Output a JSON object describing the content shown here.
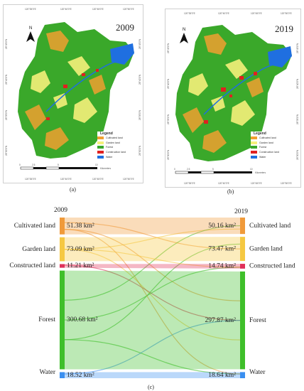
{
  "panels": [
    {
      "id": "a",
      "year": "2009",
      "caption": "(a)",
      "coords_top": [
        "120°35'0\"E",
        "120°40'0\"E",
        "120°45'0\"E",
        "120°50'0\"E"
      ],
      "coords_bottom": [
        "120°35'0\"E",
        "120°40'0\"E",
        "120°45'0\"E",
        "120°50'0\"E"
      ],
      "coords_left": [
        "28°45'0\"N",
        "28°40'0\"N",
        "28°35'0\"N",
        "28°30'0\"N"
      ],
      "coords_right": [
        "28°45'0\"N",
        "28°40'0\"N",
        "28°35'0\"N",
        "28°30'0\"N"
      ],
      "scale_unit": "Kilometers",
      "scale_ticks": [
        "0",
        "2.5",
        "5",
        "10"
      ]
    },
    {
      "id": "b",
      "year": "2019",
      "caption": "(b)",
      "coords_top": [
        "120°35'0\"E",
        "120°40'0\"E",
        "120°45'0\"E",
        "120°50'0\"E"
      ],
      "coords_bottom": [
        "120°35'0\"E",
        "120°40'0\"E",
        "120°45'0\"E",
        "120°50'0\"E"
      ],
      "coords_left": [
        "28°45'0\"N",
        "28°40'0\"N",
        "28°35'0\"N",
        "28°30'0\"N"
      ],
      "coords_right": [
        "28°45'0\"N",
        "28°40'0\"N",
        "28°35'0\"N",
        "28°30'0\"N"
      ],
      "scale_unit": "Kilometers",
      "scale_ticks": [
        "0",
        "2.5",
        "5",
        "10"
      ]
    }
  ],
  "north_arrow_label": "N",
  "legend": {
    "title": "Legend",
    "items": [
      {
        "label": "Cultivated land",
        "color": "#f0a030"
      },
      {
        "label": "Garden land",
        "color": "#f5f07a"
      },
      {
        "label": "Forest",
        "color": "#3aa82a"
      },
      {
        "label": "Construction land",
        "color": "#e02020"
      },
      {
        "label": "Water",
        "color": "#1f6fe0"
      }
    ]
  },
  "sankey": {
    "caption": "(c)",
    "left_year": "2009",
    "right_year": "2019",
    "left": [
      {
        "label": "Cultivated land",
        "value": 51.38,
        "value_text": "51.38 km²",
        "color": "#f09a3a"
      },
      {
        "label": "Garden land",
        "value": 73.09,
        "value_text": "73.09 km²",
        "color": "#f5c842"
      },
      {
        "label": "Constructed land",
        "value": 11.21,
        "value_text": "11.21 km²",
        "color": "#e0305a"
      },
      {
        "label": "Forest",
        "value": 300.68,
        "value_text": "300.68 km²",
        "color": "#3fbf2a"
      },
      {
        "label": "Water",
        "value": 18.52,
        "value_text": "18.52 km²",
        "color": "#3a8ff0"
      }
    ],
    "right": [
      {
        "label": "Cultivated land",
        "value": 50.16,
        "value_text": "50.16 km²",
        "color": "#f09a3a"
      },
      {
        "label": "Garden land",
        "value": 73.47,
        "value_text": "73.47 km²",
        "color": "#f5c842"
      },
      {
        "label": "Constructed land",
        "value": 14.74,
        "value_text": "14.74 km²",
        "color": "#e0305a"
      },
      {
        "label": "Forest",
        "value": 297.87,
        "value_text": "297.87 km²",
        "color": "#3fbf2a"
      },
      {
        "label": "Water",
        "value": 18.64,
        "value_text": "18.64 km²",
        "color": "#3a8ff0"
      }
    ]
  }
}
